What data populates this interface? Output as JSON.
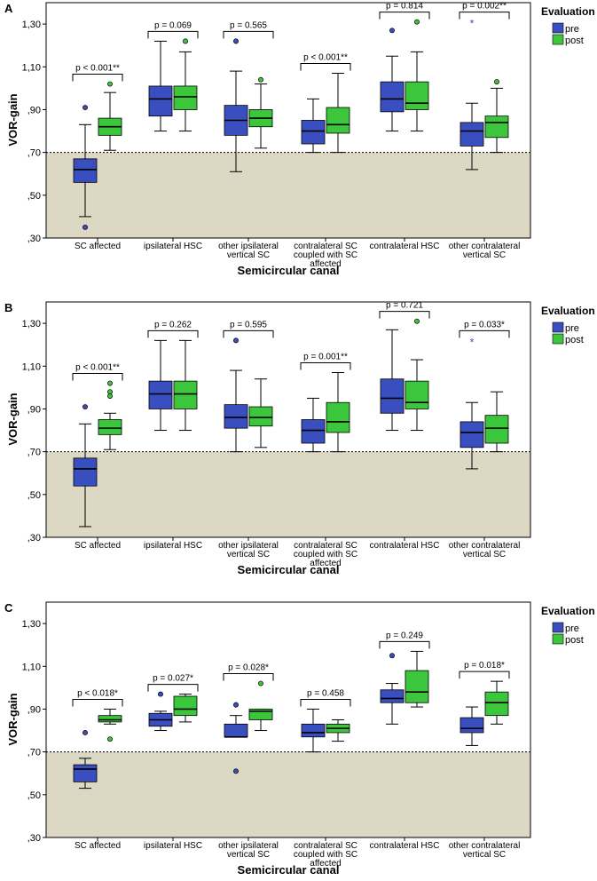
{
  "chart_data": [
    {
      "type": "boxplot",
      "panel_label": "A",
      "xlabel": "Semicircular canal",
      "ylabel": "VOR-gain",
      "ylim": [
        0.3,
        1.4
      ],
      "yticks": [
        ",30",
        ",50",
        ",70",
        ",90",
        "1,10",
        "1,30"
      ],
      "ytick_values": [
        0.3,
        0.5,
        0.7,
        0.9,
        1.1,
        1.3
      ],
      "threshold": 0.7,
      "categories": [
        [
          "SC affected"
        ],
        [
          "ipsilateral HSC"
        ],
        [
          "other ipsilateral",
          "vertical SC"
        ],
        [
          "contralateral SC",
          "coupled with SC",
          "affected"
        ],
        [
          "contralateral HSC"
        ],
        [
          "other contralateral",
          "vertical SC"
        ]
      ],
      "legend": {
        "title": "Evaluation",
        "entries": [
          "pre",
          "post"
        ],
        "colors": [
          "#3a4fbf",
          "#3cc63c"
        ]
      },
      "p_values": [
        "p < 0.001**",
        "p = 0.069",
        "p = 0.565",
        "p < 0.001**",
        "p = 0.814",
        "p = 0.002**"
      ],
      "series": [
        {
          "name": "pre",
          "boxes": [
            {
              "min": 0.4,
              "q1": 0.56,
              "median": 0.62,
              "q3": 0.67,
              "max": 0.83,
              "outliers": [
                0.91,
                0.35
              ]
            },
            {
              "min": 0.8,
              "q1": 0.87,
              "median": 0.95,
              "q3": 1.01,
              "max": 1.22,
              "outliers": []
            },
            {
              "min": 0.61,
              "q1": 0.78,
              "median": 0.85,
              "q3": 0.92,
              "max": 1.08,
              "outliers": [
                1.22
              ]
            },
            {
              "min": 0.7,
              "q1": 0.74,
              "median": 0.8,
              "q3": 0.85,
              "max": 0.95,
              "outliers": []
            },
            {
              "min": 0.8,
              "q1": 0.89,
              "median": 0.95,
              "q3": 1.03,
              "max": 1.15,
              "outliers": [
                1.27
              ]
            },
            {
              "min": 0.62,
              "q1": 0.73,
              "median": 0.8,
              "q3": 0.84,
              "max": 0.93,
              "outliers": [],
              "stars": [
                1.31
              ]
            }
          ]
        },
        {
          "name": "post",
          "boxes": [
            {
              "min": 0.71,
              "q1": 0.78,
              "median": 0.82,
              "q3": 0.86,
              "max": 0.98,
              "outliers": [
                1.02
              ]
            },
            {
              "min": 0.8,
              "q1": 0.9,
              "median": 0.96,
              "q3": 1.01,
              "max": 1.17,
              "outliers": [
                1.22
              ]
            },
            {
              "min": 0.72,
              "q1": 0.82,
              "median": 0.86,
              "q3": 0.9,
              "max": 1.02,
              "outliers": [
                1.04
              ]
            },
            {
              "min": 0.7,
              "q1": 0.79,
              "median": 0.83,
              "q3": 0.91,
              "max": 1.07,
              "outliers": []
            },
            {
              "min": 0.8,
              "q1": 0.9,
              "median": 0.93,
              "q3": 1.03,
              "max": 1.17,
              "outliers": [
                1.31
              ]
            },
            {
              "min": 0.7,
              "q1": 0.77,
              "median": 0.84,
              "q3": 0.87,
              "max": 1.0,
              "outliers": [
                1.03
              ]
            }
          ]
        }
      ]
    },
    {
      "type": "boxplot",
      "panel_label": "B",
      "xlabel": "Semicircular canal",
      "ylabel": "VOR-gain",
      "ylim": [
        0.3,
        1.4
      ],
      "yticks": [
        ",30",
        ",50",
        ",70",
        ",90",
        "1,10",
        "1,30"
      ],
      "ytick_values": [
        0.3,
        0.5,
        0.7,
        0.9,
        1.1,
        1.3
      ],
      "threshold": 0.7,
      "categories": [
        [
          "SC affected"
        ],
        [
          "ipsilateral HSC"
        ],
        [
          "other ipsilateral",
          "vertical SC"
        ],
        [
          "contralateral SC",
          "coupled with SC",
          "affected"
        ],
        [
          "contralateral HSC"
        ],
        [
          "other contralateral",
          "vertical SC"
        ]
      ],
      "legend": {
        "title": "Evaluation",
        "entries": [
          "pre",
          "post"
        ],
        "colors": [
          "#3a4fbf",
          "#3cc63c"
        ]
      },
      "p_values": [
        "p < 0.001**",
        "p = 0.262",
        "p = 0.595",
        "p = 0.001**",
        "p = 0.721",
        "p = 0.033*"
      ],
      "series": [
        {
          "name": "pre",
          "boxes": [
            {
              "min": 0.35,
              "q1": 0.54,
              "median": 0.62,
              "q3": 0.67,
              "max": 0.83,
              "outliers": [
                0.91
              ]
            },
            {
              "min": 0.8,
              "q1": 0.9,
              "median": 0.97,
              "q3": 1.03,
              "max": 1.22,
              "outliers": []
            },
            {
              "min": 0.7,
              "q1": 0.81,
              "median": 0.86,
              "q3": 0.92,
              "max": 1.08,
              "outliers": [
                1.22
              ]
            },
            {
              "min": 0.7,
              "q1": 0.74,
              "median": 0.8,
              "q3": 0.85,
              "max": 0.95,
              "outliers": []
            },
            {
              "min": 0.8,
              "q1": 0.88,
              "median": 0.95,
              "q3": 1.04,
              "max": 1.27,
              "outliers": []
            },
            {
              "min": 0.62,
              "q1": 0.72,
              "median": 0.79,
              "q3": 0.84,
              "max": 0.93,
              "outliers": [],
              "stars": [
                1.22
              ]
            }
          ]
        },
        {
          "name": "post",
          "boxes": [
            {
              "min": 0.71,
              "q1": 0.78,
              "median": 0.81,
              "q3": 0.85,
              "max": 0.88,
              "outliers": [
                0.96,
                0.98,
                1.02
              ]
            },
            {
              "min": 0.8,
              "q1": 0.9,
              "median": 0.97,
              "q3": 1.03,
              "max": 1.22,
              "outliers": []
            },
            {
              "min": 0.72,
              "q1": 0.82,
              "median": 0.86,
              "q3": 0.91,
              "max": 1.04,
              "outliers": []
            },
            {
              "min": 0.7,
              "q1": 0.79,
              "median": 0.84,
              "q3": 0.93,
              "max": 1.07,
              "outliers": []
            },
            {
              "min": 0.8,
              "q1": 0.9,
              "median": 0.93,
              "q3": 1.03,
              "max": 1.13,
              "outliers": [
                1.31
              ]
            },
            {
              "min": 0.7,
              "q1": 0.74,
              "median": 0.81,
              "q3": 0.87,
              "max": 0.98,
              "outliers": []
            }
          ]
        }
      ]
    },
    {
      "type": "boxplot",
      "panel_label": "C",
      "xlabel": "Semicircular canal",
      "ylabel": "VOR-gain",
      "ylim": [
        0.3,
        1.4
      ],
      "yticks": [
        ",30",
        ",50",
        ",70",
        ",90",
        "1,10",
        "1,30"
      ],
      "ytick_values": [
        0.3,
        0.5,
        0.7,
        0.9,
        1.1,
        1.3
      ],
      "threshold": 0.7,
      "categories": [
        [
          "SC affected"
        ],
        [
          "ipsilateral HSC"
        ],
        [
          "other ipsilateral",
          "vertical SC"
        ],
        [
          "contralateral SC",
          "coupled with SC",
          "affected"
        ],
        [
          "contralateral HSC"
        ],
        [
          "other contralateral",
          "vertical SC"
        ]
      ],
      "legend": {
        "title": "Evaluation",
        "entries": [
          "pre",
          "post"
        ],
        "colors": [
          "#3a4fbf",
          "#3cc63c"
        ]
      },
      "p_values": [
        "p < 0.018*",
        "p = 0.027*",
        "p = 0.028*",
        "p = 0.458",
        "p = 0.249",
        "p = 0.018*"
      ],
      "series": [
        {
          "name": "pre",
          "boxes": [
            {
              "min": 0.53,
              "q1": 0.56,
              "median": 0.62,
              "q3": 0.64,
              "max": 0.67,
              "outliers": [
                0.79
              ]
            },
            {
              "min": 0.8,
              "q1": 0.82,
              "median": 0.85,
              "q3": 0.88,
              "max": 0.89,
              "outliers": [
                0.97
              ]
            },
            {
              "min": 0.77,
              "q1": 0.77,
              "median": 0.77,
              "q3": 0.83,
              "max": 0.87,
              "outliers": [
                0.92,
                0.61
              ]
            },
            {
              "min": 0.7,
              "q1": 0.77,
              "median": 0.79,
              "q3": 0.83,
              "max": 0.9,
              "outliers": []
            },
            {
              "min": 0.83,
              "q1": 0.93,
              "median": 0.95,
              "q3": 0.99,
              "max": 1.02,
              "outliers": [
                1.15
              ]
            },
            {
              "min": 0.73,
              "q1": 0.79,
              "median": 0.81,
              "q3": 0.86,
              "max": 0.91,
              "outliers": []
            }
          ]
        },
        {
          "name": "post",
          "boxes": [
            {
              "min": 0.83,
              "q1": 0.84,
              "median": 0.85,
              "q3": 0.87,
              "max": 0.9,
              "outliers": [
                0.76
              ]
            },
            {
              "min": 0.84,
              "q1": 0.87,
              "median": 0.9,
              "q3": 0.96,
              "max": 0.97,
              "outliers": []
            },
            {
              "min": 0.8,
              "q1": 0.85,
              "median": 0.89,
              "q3": 0.9,
              "max": 0.9,
              "outliers": [
                1.02
              ]
            },
            {
              "min": 0.75,
              "q1": 0.79,
              "median": 0.81,
              "q3": 0.83,
              "max": 0.85,
              "outliers": []
            },
            {
              "min": 0.91,
              "q1": 0.93,
              "median": 0.98,
              "q3": 1.08,
              "max": 1.17,
              "outliers": []
            },
            {
              "min": 0.83,
              "q1": 0.87,
              "median": 0.93,
              "q3": 0.98,
              "max": 1.03,
              "outliers": []
            }
          ]
        }
      ]
    }
  ],
  "style": {
    "pre_color": "#3a4fbf",
    "post_color": "#3cc63c",
    "shade_color": "#ddd8c4"
  }
}
